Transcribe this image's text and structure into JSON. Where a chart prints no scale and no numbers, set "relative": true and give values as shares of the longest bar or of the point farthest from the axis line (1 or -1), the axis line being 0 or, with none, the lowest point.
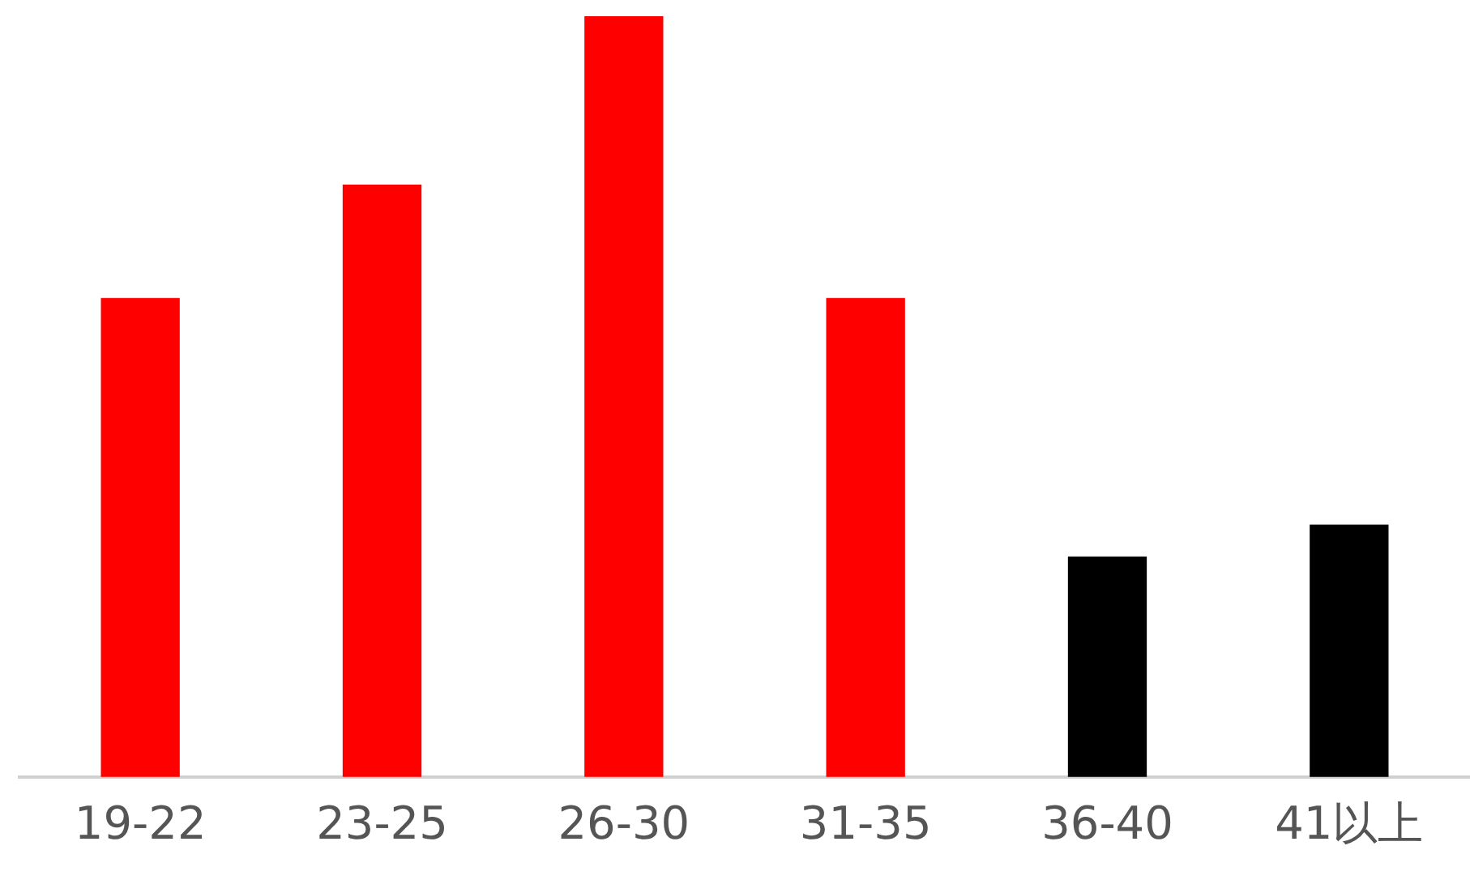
{
  "chart_data": {
    "type": "bar",
    "relative": true,
    "categories": [
      "19-22",
      "23-25",
      "26-30",
      "31-35",
      "36-40",
      "41以上"
    ],
    "values": [
      0.629,
      0.778,
      1,
      0.629,
      0.289,
      0.331
    ],
    "colors": [
      "#ff0000",
      "#ff0000",
      "#ff0000",
      "#ff0000",
      "#000000",
      "#000000"
    ],
    "grid": false,
    "legend": false
  }
}
